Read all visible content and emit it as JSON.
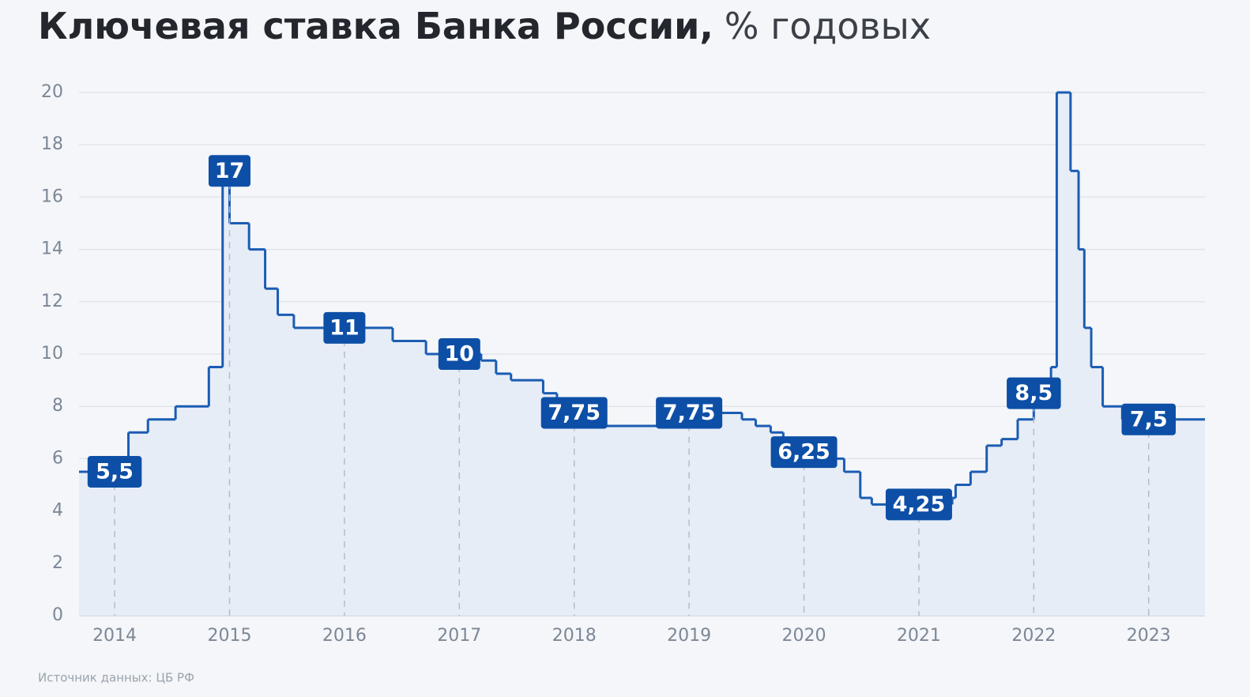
{
  "chart_data": {
    "type": "step",
    "title": "Ключевая ставка Банка России,",
    "subtitle": "% годовых",
    "source": "Источник данных: ЦБ РФ",
    "xlim": [
      2013.69,
      2023.49
    ],
    "xticks": [
      2014,
      2015,
      2016,
      2017,
      2018,
      2019,
      2020,
      2021,
      2022,
      2023
    ],
    "ylim": [
      0,
      20
    ],
    "yticks": [
      0,
      2,
      4,
      6,
      8,
      10,
      12,
      14,
      16,
      18,
      20
    ],
    "grid": true,
    "series": [
      {
        "color": "#1b5cb3",
        "x": [
          2013.69,
          2014.12,
          2014.29,
          2014.53,
          2014.82,
          2014.94,
          2015.0,
          2015.17,
          2015.31,
          2015.42,
          2015.56,
          2016.42,
          2016.71,
          2017.19,
          2017.32,
          2017.45,
          2017.73,
          2017.85,
          2017.94,
          2018.04,
          2018.17,
          2018.85,
          2019.11,
          2019.46,
          2019.58,
          2019.71,
          2019.82,
          2019.92,
          2020.21,
          2020.35,
          2020.49,
          2020.59,
          2021.29,
          2021.32,
          2021.45,
          2021.59,
          2021.72,
          2021.86,
          2022.0,
          2022.15,
          2022.2,
          2022.32,
          2022.39,
          2022.44,
          2022.5,
          2022.6,
          2022.77
        ],
        "values": [
          5.5,
          7,
          7.5,
          8,
          9.5,
          17,
          15,
          14,
          12.5,
          11.5,
          11,
          10.5,
          10,
          9.75,
          9.25,
          9,
          8.5,
          8.25,
          7.75,
          7.5,
          7.25,
          7.5,
          7.75,
          7.5,
          7.25,
          7,
          6.5,
          6.25,
          6,
          5.5,
          4.5,
          4.25,
          4.5,
          5,
          5.5,
          6.5,
          6.75,
          7.5,
          8.5,
          9.5,
          20,
          17,
          14,
          11,
          9.5,
          8,
          7.5
        ]
      }
    ],
    "annotations": [
      {
        "x": 2014,
        "value": 5.5,
        "label": "5,5"
      },
      {
        "x": 2015,
        "value": 17,
        "label": "17"
      },
      {
        "x": 2016,
        "value": 11,
        "label": "11"
      },
      {
        "x": 2017,
        "value": 10,
        "label": "10"
      },
      {
        "x": 2018,
        "value": 7.75,
        "label": "7,75"
      },
      {
        "x": 2019,
        "value": 7.75,
        "label": "7,75"
      },
      {
        "x": 2020,
        "value": 6.25,
        "label": "6,25"
      },
      {
        "x": 2021,
        "value": 4.25,
        "label": "4,25"
      },
      {
        "x": 2022,
        "value": 8.5,
        "label": "8,5"
      },
      {
        "x": 2023,
        "value": 7.5,
        "label": "7,5"
      }
    ]
  }
}
